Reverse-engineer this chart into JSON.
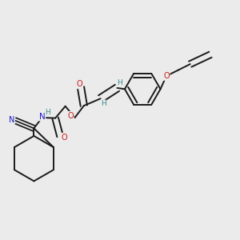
{
  "bg_color": "#ebebeb",
  "bond_color": "#1a1a1a",
  "bond_width": 1.4,
  "H_color": "#3a8a8a",
  "N_color": "#1a1acc",
  "O_color": "#cc1a1a",
  "C_color": "#1a1a1a",
  "font_size_atom": 6.5,
  "fig_size": [
    3.0,
    3.0
  ],
  "dpi": 100,
  "xlim": [
    0,
    1
  ],
  "ylim": [
    0,
    1
  ]
}
